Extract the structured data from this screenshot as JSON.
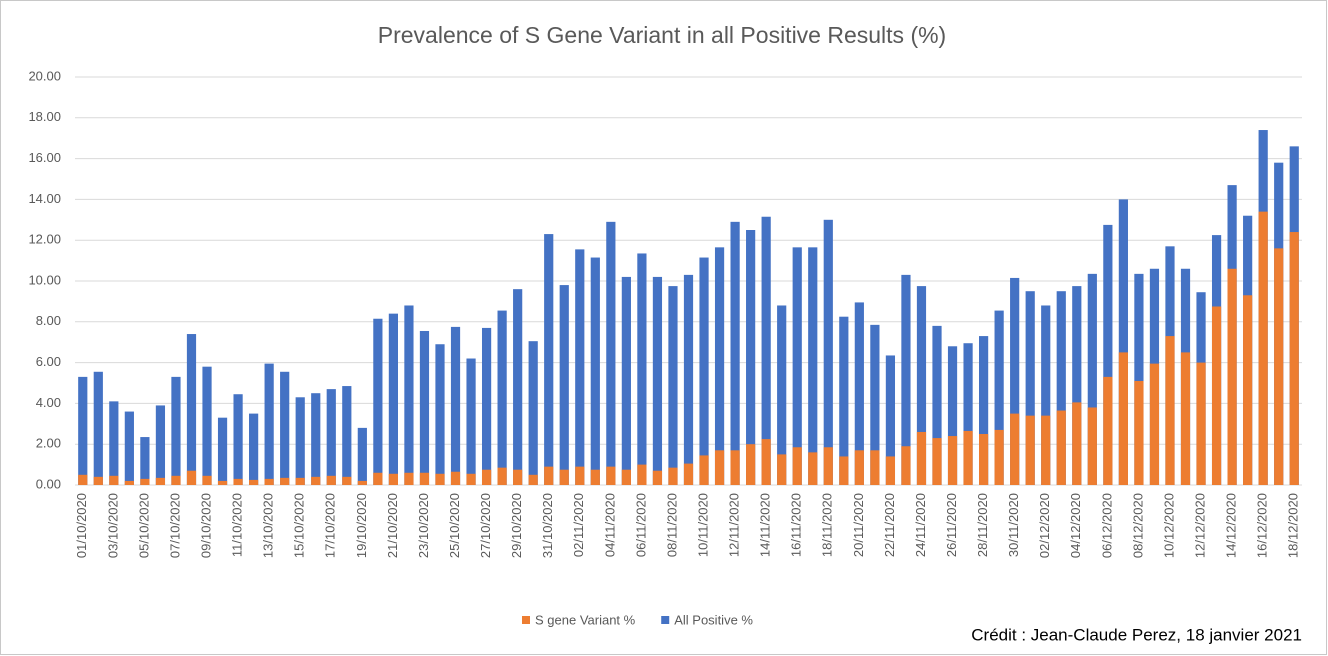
{
  "chart_data": {
    "type": "bar",
    "title": "Prevalence of S Gene Variant in all Positive Results (%)",
    "categories": [
      "01/10/2020",
      null,
      "03/10/2020",
      null,
      "05/10/2020",
      null,
      "07/10/2020",
      null,
      "09/10/2020",
      null,
      "11/10/2020",
      null,
      "13/10/2020",
      null,
      "15/10/2020",
      null,
      "17/10/2020",
      null,
      "19/10/2020",
      null,
      "21/10/2020",
      null,
      "23/10/2020",
      null,
      "25/10/2020",
      null,
      "27/10/2020",
      null,
      "29/10/2020",
      null,
      "31/10/2020",
      null,
      "02/11/2020",
      null,
      "04/11/2020",
      null,
      "06/11/2020",
      null,
      "08/11/2020",
      null,
      "10/11/2020",
      null,
      "12/11/2020",
      null,
      "14/11/2020",
      null,
      "16/11/2020",
      null,
      "18/11/2020",
      null,
      "20/11/2020",
      null,
      "22/11/2020",
      null,
      "24/11/2020",
      null,
      "26/11/2020",
      null,
      "28/11/2020",
      null,
      "30/11/2020",
      null,
      "02/12/2020",
      null,
      "04/12/2020",
      null,
      "06/12/2020",
      null,
      "08/12/2020",
      null,
      "10/12/2020",
      null,
      "12/12/2020",
      null,
      "14/12/2020",
      null,
      "16/12/2020",
      null,
      "18/12/2020"
    ],
    "series": [
      {
        "name": "S gene Variant %",
        "color": "#ed7d31",
        "values": [
          0.5,
          0.4,
          0.45,
          0.2,
          0.3,
          0.35,
          0.45,
          0.7,
          0.45,
          0.2,
          0.3,
          0.25,
          0.3,
          0.35,
          0.35,
          0.4,
          0.45,
          0.4,
          0.2,
          0.6,
          0.55,
          0.6,
          0.6,
          0.55,
          0.65,
          0.55,
          0.75,
          0.85,
          0.75,
          0.5,
          0.9,
          0.75,
          0.9,
          0.75,
          0.9,
          0.75,
          1.0,
          0.7,
          0.85,
          1.05,
          1.45,
          1.7,
          1.7,
          2.0,
          2.25,
          1.5,
          1.85,
          1.6,
          1.85,
          1.4,
          1.7,
          1.7,
          1.4,
          1.9,
          2.6,
          2.3,
          2.4,
          2.65,
          2.5,
          2.7,
          3.5,
          3.4,
          3.4,
          3.65,
          4.05,
          3.8,
          5.3,
          6.5,
          5.1,
          5.95,
          7.3,
          6.5,
          6.0,
          8.75,
          10.6,
          9.3,
          13.4,
          11.6,
          12.4
        ]
      },
      {
        "name": "All Positive %",
        "color": "#4472c4",
        "values": [
          5.3,
          5.55,
          4.1,
          3.6,
          2.35,
          3.9,
          5.3,
          7.4,
          5.8,
          3.3,
          4.45,
          3.5,
          5.95,
          5.55,
          4.3,
          4.5,
          4.7,
          4.85,
          2.8,
          8.15,
          8.4,
          8.8,
          7.55,
          6.9,
          7.75,
          6.2,
          7.7,
          8.55,
          9.6,
          7.05,
          12.3,
          9.8,
          11.55,
          11.15,
          12.9,
          10.2,
          11.35,
          10.2,
          9.75,
          10.3,
          11.15,
          11.65,
          12.9,
          12.5,
          13.15,
          8.8,
          11.65,
          11.65,
          13.0,
          8.25,
          8.95,
          7.85,
          6.35,
          10.3,
          9.75,
          7.8,
          6.8,
          6.95,
          7.3,
          8.55,
          10.15,
          9.5,
          8.8,
          9.5,
          9.75,
          10.35,
          12.75,
          14.0,
          10.35,
          10.6,
          11.7,
          10.6,
          9.45,
          12.25,
          14.7,
          13.2,
          17.4,
          15.8,
          16.6
        ]
      }
    ],
    "ylim": [
      0,
      20
    ],
    "yticks": [
      {
        "value": 0,
        "label": "0.00"
      },
      {
        "value": 2,
        "label": "2.00"
      },
      {
        "value": 4,
        "label": "4.00"
      },
      {
        "value": 6,
        "label": "6.00"
      },
      {
        "value": 8,
        "label": "8.00"
      },
      {
        "value": 10,
        "label": "10.00"
      },
      {
        "value": 12,
        "label": "12.00"
      },
      {
        "value": 14,
        "label": "14.00"
      },
      {
        "value": 16,
        "label": "16.00"
      },
      {
        "value": 18,
        "label": "18.00"
      },
      {
        "value": 20,
        "label": "20.00"
      }
    ],
    "grid": true,
    "legend": "bottom",
    "annotation": "Crédit : Jean-Claude Perez, 18 janvier 2021"
  }
}
